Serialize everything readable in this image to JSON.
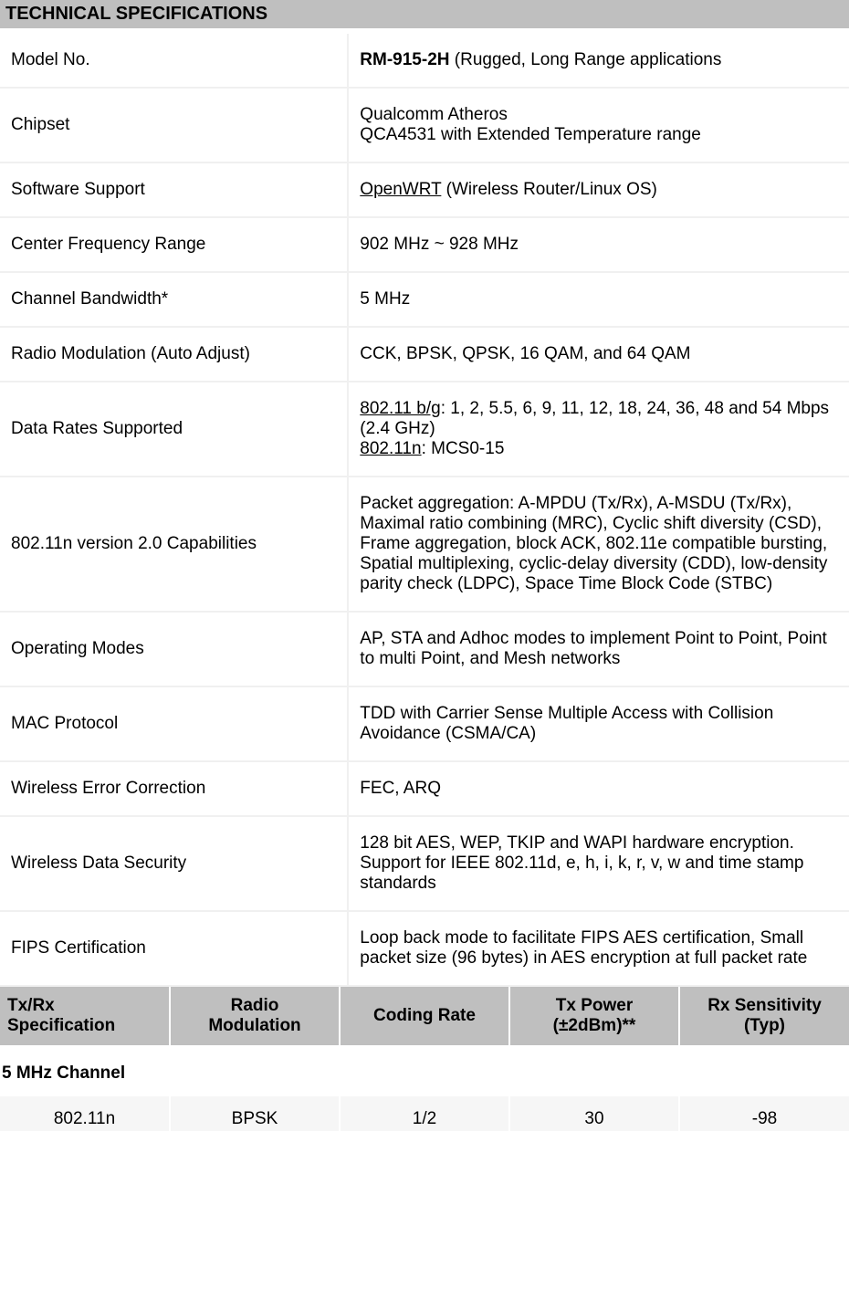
{
  "header": {
    "title": "TECHNICAL SPECIFICATIONS"
  },
  "specs": {
    "model_no": {
      "label": "Model No.",
      "value_bold": "RM-915-2H",
      "value_rest": " (Rugged, Long Range applications"
    },
    "chipset": {
      "label": "Chipset",
      "line1": "Qualcomm Atheros",
      "line2": "QCA4531 with Extended Temperature range"
    },
    "software": {
      "label": "Software Support",
      "value_u": "OpenWRT",
      "value_rest": " (Wireless Router/Linux OS)"
    },
    "freq": {
      "label": "Center Frequency Range",
      "value": "902 MHz ~ 928 MHz"
    },
    "bw": {
      "label": "Channel Bandwidth*",
      "value": "5 MHz"
    },
    "mod": {
      "label": "Radio Modulation (Auto Adjust)",
      "value": "CCK, BPSK, QPSK, 16 QAM, and 64 QAM"
    },
    "rates": {
      "label": "Data Rates Supported",
      "u1": "802.11 b/g",
      "rest1": ": 1, 2, 5.5, 6, 9, 11, 12, 18, 24, 36, 48 and 54 Mbps (2.4 GHz)",
      "u2": "802.11n",
      "rest2": ": MCS0-15"
    },
    "ncap": {
      "label": "802.11n version 2.0 Capabilities",
      "value": "Packet aggregation: A-MPDU (Tx/Rx), A-MSDU (Tx/Rx), Maximal ratio combining (MRC), Cyclic shift diversity (CSD), Frame aggregation, block ACK, 802.11e compatible bursting, Spatial multiplexing, cyclic-delay diversity (CDD), low-density parity check (LDPC), Space Time Block Code (STBC)"
    },
    "opmodes": {
      "label": "Operating Modes",
      "value": "AP, STA and Adhoc modes to implement Point to Point, Point to multi Point, and Mesh networks"
    },
    "mac": {
      "label": "MAC Protocol",
      "value": "TDD with Carrier Sense Multiple Access with Collision Avoidance (CSMA/CA)"
    },
    "wec": {
      "label": "Wireless Error Correction",
      "value": "FEC, ARQ"
    },
    "sec": {
      "label": "Wireless Data Security",
      "value": "128 bit AES, WEP, TKIP and WAPI hardware encryption. Support for IEEE 802.11d, e, h, i, k, r, v, w and time stamp standards"
    },
    "fips": {
      "label": "FIPS Certification",
      "value": "Loop back mode to facilitate FIPS AES certification, Small packet size (96 bytes) in AES encryption at full packet rate"
    }
  },
  "txrx": {
    "headers": {
      "c1l1": "Tx/Rx",
      "c1l2": "Specification",
      "c2l1": "Radio",
      "c2l2": "Modulation",
      "c3": "Coding Rate",
      "c4l1": "Tx Power",
      "c4l2": "(±2dBm)**",
      "c5l1": "Rx Sensitivity",
      "c5l2": "(Typ)"
    },
    "channel_label": "5 MHz Channel",
    "row1": {
      "c1": "802.11n",
      "c2": "BPSK",
      "c3": "1/2",
      "c4": "30",
      "c5": "-98"
    }
  },
  "colors": {
    "header_bg": "#bfbfbf",
    "row_border": "#f0f0f0",
    "data_bg": "#f6f6f6"
  }
}
